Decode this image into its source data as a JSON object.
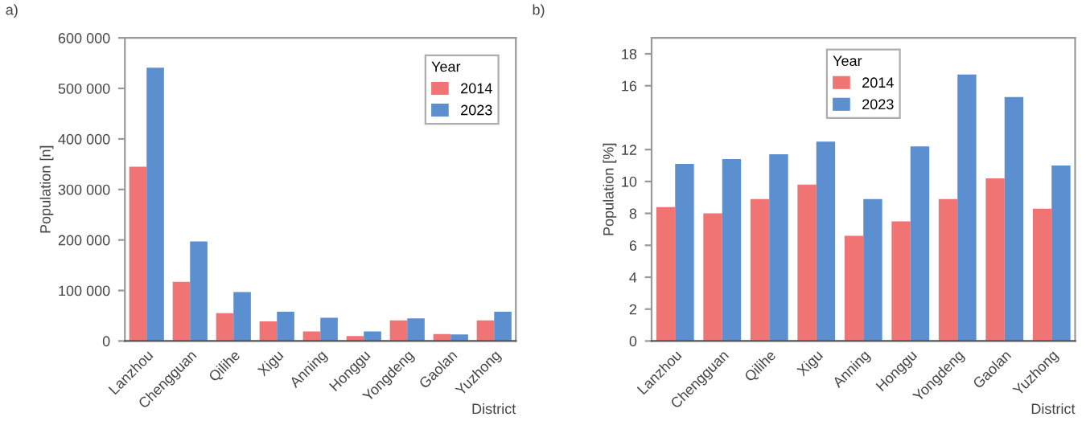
{
  "chart_data": [
    {
      "type": "bar",
      "title": "a)",
      "xlabel": "District",
      "ylabel": "Population [n]",
      "legend_title": "Year",
      "legend": "top right",
      "grid": false,
      "categories": [
        "Lanzhou",
        "Chengguan",
        "Qilihe",
        "Xigu",
        "Anning",
        "Honggu",
        "Yongdeng",
        "Gaolan",
        "Yuzhong"
      ],
      "series": [
        {
          "name": "2014",
          "color": "#f07474",
          "values": [
            345000,
            117000,
            55000,
            39000,
            19000,
            10000,
            41000,
            14000,
            41000
          ]
        },
        {
          "name": "2023",
          "color": "#5b8fd0",
          "values": [
            541000,
            197000,
            97000,
            58000,
            46000,
            19000,
            45000,
            13000,
            58000
          ]
        }
      ],
      "ylim": [
        0,
        600000
      ],
      "yticks": [
        0,
        {
          "value": 100000,
          "label": "100 000"
        },
        {
          "value": 200000,
          "label": "200 000"
        },
        {
          "value": 300000,
          "label": "300 000"
        },
        {
          "value": 400000,
          "label": "400 000"
        },
        {
          "value": 500000,
          "label": "500 000"
        },
        {
          "value": 600000,
          "label": "600 000"
        }
      ]
    },
    {
      "type": "bar",
      "title": "b)",
      "xlabel": "District",
      "ylabel": "Population [%]",
      "legend_title": "Year",
      "legend": "top",
      "grid": false,
      "categories": [
        "Lanzhou",
        "Chengguan",
        "Qilihe",
        "Xigu",
        "Anning",
        "Honggu",
        "Yongdeng",
        "Gaolan",
        "Yuzhong"
      ],
      "series": [
        {
          "name": "2014",
          "color": "#f07474",
          "values": [
            8.4,
            8.0,
            8.9,
            9.8,
            6.6,
            7.5,
            8.9,
            10.2,
            8.3
          ]
        },
        {
          "name": "2023",
          "color": "#5b8fd0",
          "values": [
            11.1,
            11.4,
            11.7,
            12.5,
            8.9,
            12.2,
            16.7,
            15.3,
            11.0
          ]
        }
      ],
      "ylim": [
        0,
        19
      ],
      "yticks": [
        0,
        2,
        4,
        6,
        8,
        10,
        12,
        16,
        18
      ]
    }
  ]
}
